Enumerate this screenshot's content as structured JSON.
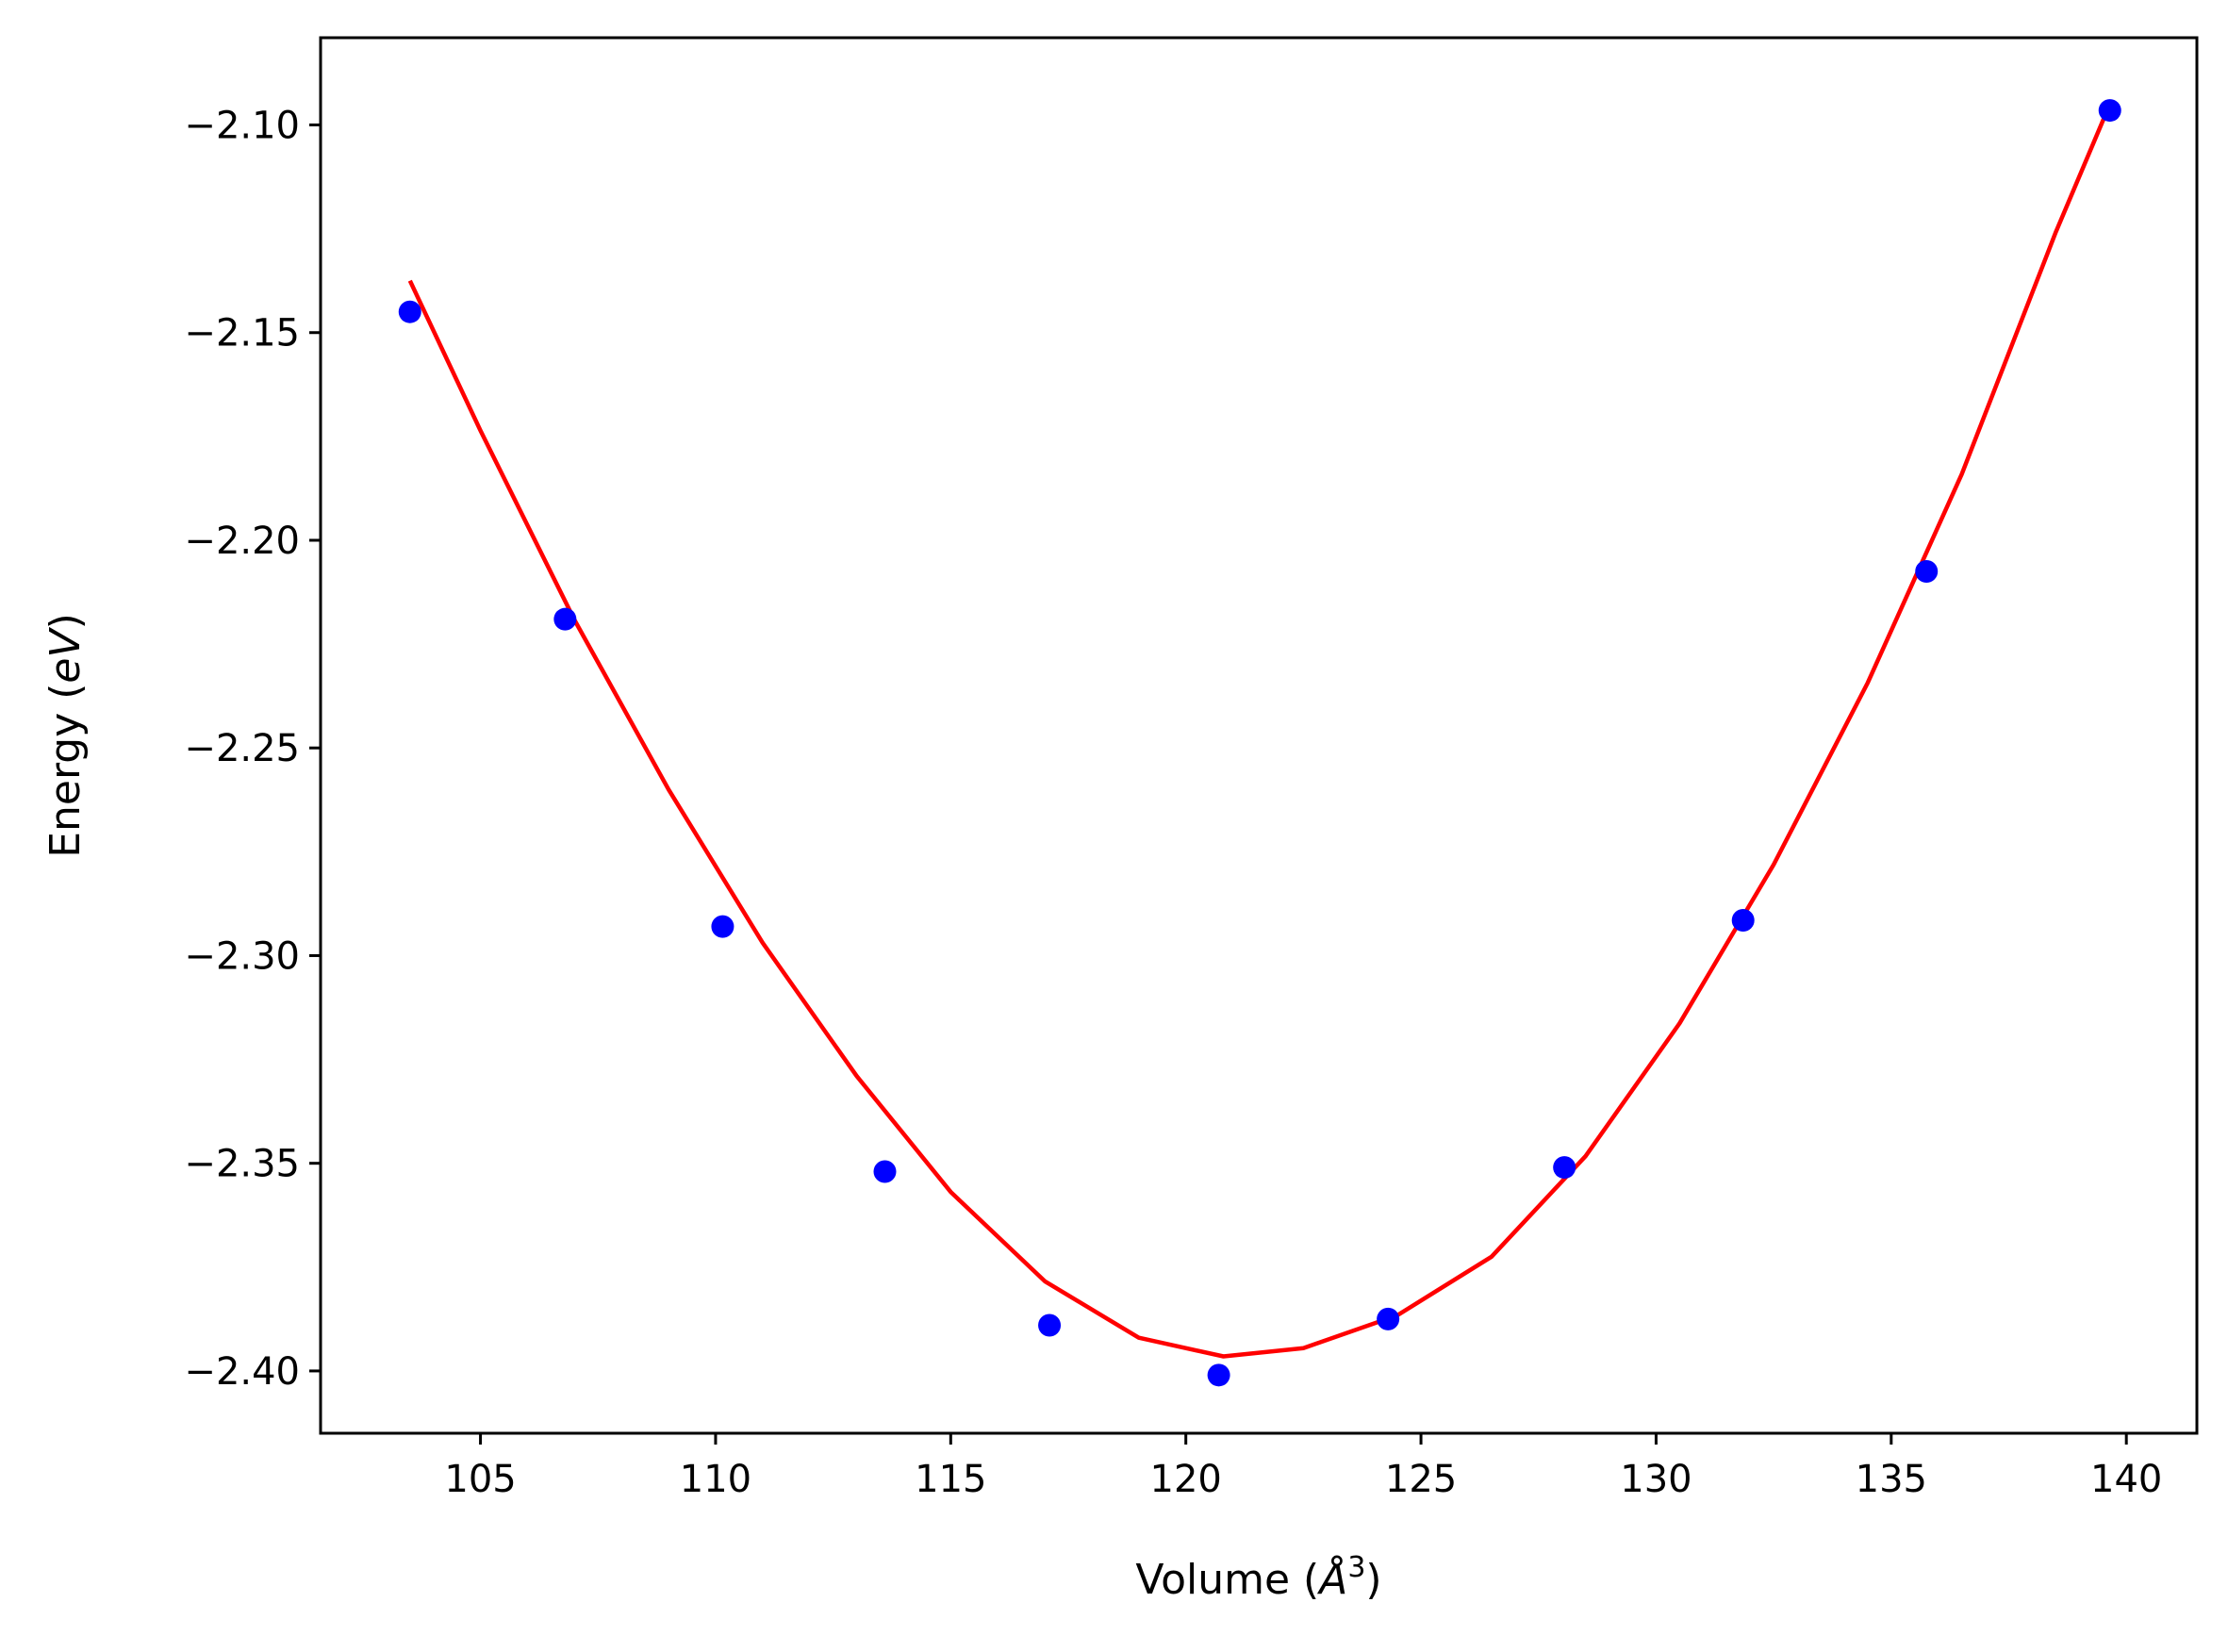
{
  "chart_data": {
    "type": "scatter",
    "title": "",
    "xlabel": {
      "base": "Volume (",
      "symbol": "Å",
      "sup": "3",
      "tail": ")"
    },
    "ylabel": {
      "base": "Energy (",
      "symbol": "eV",
      "tail": ")"
    },
    "xlim": [
      101.6,
      141.5
    ],
    "ylim": [
      -2.415,
      -2.079
    ],
    "xticks": [
      105,
      110,
      115,
      120,
      125,
      130,
      135,
      140
    ],
    "xtick_labels": [
      "105",
      "110",
      "115",
      "120",
      "125",
      "130",
      "135",
      "140"
    ],
    "yticks": [
      -2.1,
      -2.15,
      -2.2,
      -2.25,
      -2.3,
      -2.35,
      -2.4
    ],
    "ytick_labels": [
      "−2.10",
      "−2.15",
      "−2.20",
      "−2.25",
      "−2.30",
      "−2.35",
      "−2.40"
    ],
    "grid": false,
    "series": [
      {
        "kind": "points",
        "color": "#0000ff",
        "x": [
          103.5,
          106.8,
          110.15,
          113.6,
          117.1,
          120.7,
          124.3,
          128.05,
          131.85,
          135.75,
          139.65
        ],
        "y": [
          -2.145,
          -2.219,
          -2.293,
          -2.352,
          -2.389,
          -2.401,
          -2.3875,
          -2.351,
          -2.2915,
          -2.2075,
          -2.0965
        ]
      },
      {
        "kind": "fit-line",
        "color": "#ff0000",
        "x": [
          103.5,
          105,
          107,
          109,
          111,
          113,
          115,
          117,
          119,
          120.8,
          122.5,
          124.5,
          126.5,
          128.5,
          130.5,
          132.5,
          134.5,
          136.5,
          138.5,
          139.65
        ],
        "y": [
          -2.1375,
          -2.1736,
          -2.2192,
          -2.26,
          -2.2969,
          -2.329,
          -2.3569,
          -2.3784,
          -2.392,
          -2.3965,
          -2.3945,
          -2.3866,
          -2.3725,
          -2.3483,
          -2.3163,
          -2.2781,
          -2.2343,
          -2.1841,
          -2.1258,
          -2.095
        ]
      }
    ]
  }
}
